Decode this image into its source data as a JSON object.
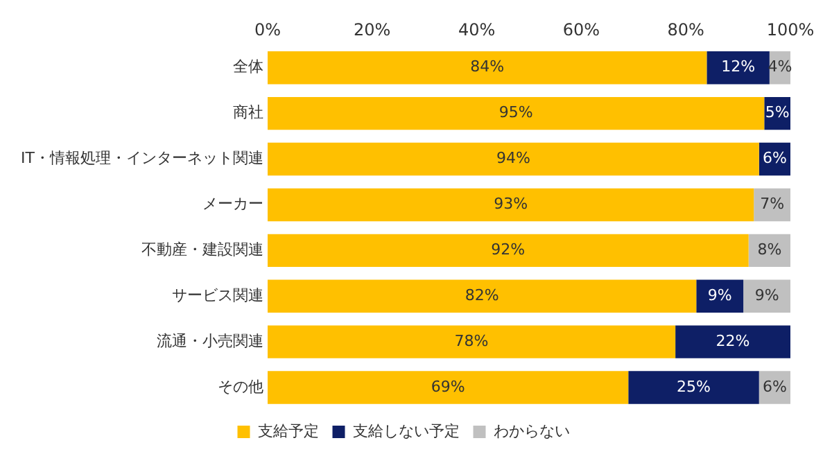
{
  "chart_data": {
    "type": "bar",
    "orientation": "horizontal",
    "stacked": true,
    "legend": "bottom",
    "marker": "square",
    "categories": [
      "全体",
      "商社",
      "IT・情報処理・インターネット関連",
      "メーカー",
      "不動産・建設関連",
      "サービス関連",
      "流通・小売関連",
      "その他"
    ],
    "xlim": [
      0,
      100
    ],
    "xticks": [
      {
        "value": 0,
        "label": "0%"
      },
      {
        "value": 20,
        "label": "20%"
      },
      {
        "value": 40,
        "label": "40%"
      },
      {
        "value": 60,
        "label": "60%"
      },
      {
        "value": 80,
        "label": "80%"
      },
      {
        "value": 100,
        "label": "100%"
      }
    ],
    "series": [
      {
        "name": "支給予定",
        "color": "#ffc000",
        "values": [
          84,
          95,
          94,
          93,
          92,
          82,
          78,
          69
        ],
        "value_labels": [
          "84%",
          "95%",
          "94%",
          "93%",
          "92%",
          "82%",
          "78%",
          "69%"
        ]
      },
      {
        "name": "支給しない予定",
        "color": "#0e1f66",
        "values": [
          12,
          5,
          6,
          null,
          null,
          9,
          22,
          25
        ],
        "value_labels": [
          "12%",
          "5%",
          "6%",
          null,
          null,
          "9%",
          "22%",
          "25%"
        ]
      },
      {
        "name": "わからない",
        "color": "#c0c0c0",
        "values": [
          4,
          null,
          null,
          7,
          8,
          9,
          null,
          6
        ],
        "value_labels": [
          "4%",
          null,
          null,
          "7%",
          "8%",
          "9%",
          null,
          "6%"
        ]
      }
    ]
  }
}
